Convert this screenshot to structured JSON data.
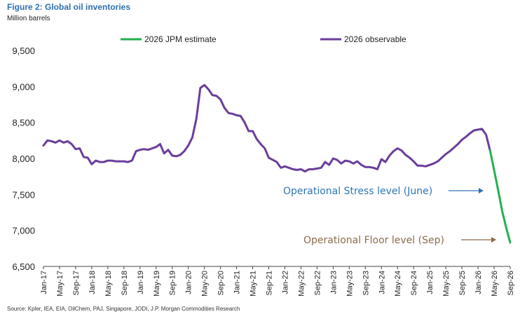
{
  "figure": {
    "title": "Figure 2: Global oil inventories",
    "units": "Million barrels",
    "source": "Source: Kpler, IEA, EIA, OilChem, PAJ, Singapore, JODI, J.P. Morgan Commodities Research"
  },
  "chart_data": {
    "type": "line",
    "title": "Figure 2: Global oil inventories",
    "ylabel": "Million barrels",
    "xlabel": "",
    "ylim": [
      6500,
      9500
    ],
    "yticks": [
      6500,
      7000,
      7500,
      8000,
      8500,
      9000,
      9500
    ],
    "ytick_labels": [
      "6,500",
      "7,000",
      "7,500",
      "8,000",
      "8,500",
      "9,000",
      "9,500"
    ],
    "xtick_labels": [
      "Jan-17",
      "May-17",
      "Sep-17",
      "Jan-18",
      "May-18",
      "Sep-18",
      "Jan-19",
      "May-19",
      "Sep-19",
      "Jan-20",
      "May-20",
      "Sep-20",
      "Jan-21",
      "May-21",
      "Sep-21",
      "Jan-22",
      "May-22",
      "Sep-22",
      "Jan-23",
      "May-23",
      "Sep-23",
      "Jan-24",
      "May-24",
      "Sep-24",
      "Jan-25",
      "May-25",
      "Sep-25",
      "Jan-26",
      "May-26",
      "Sep-26"
    ],
    "grid": false,
    "legend_position": "top",
    "series": [
      {
        "name": "2026 observable",
        "color": "#6a3d9a",
        "x": [
          "Jan-17",
          "Feb-17",
          "Mar-17",
          "Apr-17",
          "May-17",
          "Jun-17",
          "Jul-17",
          "Aug-17",
          "Sep-17",
          "Oct-17",
          "Nov-17",
          "Dec-17",
          "Jan-18",
          "Feb-18",
          "Mar-18",
          "Apr-18",
          "May-18",
          "Jun-18",
          "Jul-18",
          "Aug-18",
          "Sep-18",
          "Oct-18",
          "Nov-18",
          "Dec-18",
          "Jan-19",
          "Feb-19",
          "Mar-19",
          "Apr-19",
          "May-19",
          "Jun-19",
          "Jul-19",
          "Aug-19",
          "Sep-19",
          "Oct-19",
          "Nov-19",
          "Dec-19",
          "Jan-20",
          "Feb-20",
          "Mar-20",
          "Apr-20",
          "May-20",
          "Jun-20",
          "Jul-20",
          "Aug-20",
          "Sep-20",
          "Oct-20",
          "Nov-20",
          "Dec-20",
          "Jan-21",
          "Feb-21",
          "Mar-21",
          "Apr-21",
          "May-21",
          "Jun-21",
          "Jul-21",
          "Aug-21",
          "Sep-21",
          "Oct-21",
          "Nov-21",
          "Dec-21",
          "Jan-22",
          "Feb-22",
          "Mar-22",
          "Apr-22",
          "May-22",
          "Jun-22",
          "Jul-22",
          "Aug-22",
          "Sep-22",
          "Oct-22",
          "Nov-22",
          "Dec-22",
          "Jan-23",
          "Feb-23",
          "Mar-23",
          "Apr-23",
          "May-23",
          "Jun-23",
          "Jul-23",
          "Aug-23",
          "Sep-23",
          "Oct-23",
          "Nov-23",
          "Dec-23",
          "Jan-24",
          "Feb-24",
          "Mar-24",
          "Apr-24",
          "May-24",
          "Jun-24",
          "Jul-24",
          "Aug-24",
          "Sep-24",
          "Oct-24",
          "Nov-24",
          "Dec-24",
          "Jan-25",
          "Feb-25",
          "Mar-25",
          "Apr-25",
          "May-25",
          "Jun-25",
          "Jul-25",
          "Aug-25",
          "Sep-25",
          "Oct-25",
          "Nov-25",
          "Dec-25",
          "Jan-26",
          "Feb-26",
          "Mar-26",
          "Apr-26"
        ],
        "values": [
          8180,
          8250,
          8240,
          8220,
          8250,
          8220,
          8240,
          8200,
          8130,
          8140,
          8020,
          8010,
          7920,
          7970,
          7950,
          7950,
          7970,
          7970,
          7960,
          7960,
          7960,
          7950,
          7970,
          8100,
          8120,
          8130,
          8120,
          8140,
          8160,
          8200,
          8070,
          8120,
          8040,
          8030,
          8050,
          8100,
          8180,
          8290,
          8550,
          8980,
          9020,
          8960,
          8880,
          8870,
          8820,
          8700,
          8630,
          8620,
          8600,
          8590,
          8500,
          8380,
          8380,
          8270,
          8200,
          8140,
          8010,
          7980,
          7950,
          7870,
          7890,
          7870,
          7850,
          7840,
          7850,
          7820,
          7850,
          7850,
          7860,
          7870,
          7950,
          7910,
          8000,
          7980,
          7930,
          7970,
          7960,
          7930,
          7960,
          7910,
          7880,
          7880,
          7870,
          7850,
          7990,
          7950,
          8040,
          8100,
          8140,
          8110,
          8050,
          8010,
          7960,
          7900,
          7900,
          7890,
          7910,
          7930,
          7960,
          8010,
          8060,
          8100,
          8150,
          8200,
          8260,
          8300,
          8350,
          8390,
          8400,
          8410,
          8330,
          8110
        ]
      },
      {
        "name": "2026 JPM estimate",
        "color": "#22b14c",
        "x": [
          "Apr-26",
          "May-26",
          "Jun-26",
          "Jul-26",
          "Aug-26",
          "Sep-26"
        ],
        "values": [
          8110,
          7840,
          7560,
          7270,
          7040,
          6830
        ]
      }
    ],
    "annotations": [
      {
        "text": "Operational Stress level (June)",
        "color": "#2e75b6",
        "target_x": "Jun-26",
        "target_y": 7550
      },
      {
        "text": "Operational Floor level (Sep)",
        "color": "#8b6b4a",
        "target_x": "Sep-26",
        "target_y": 6830
      }
    ]
  }
}
